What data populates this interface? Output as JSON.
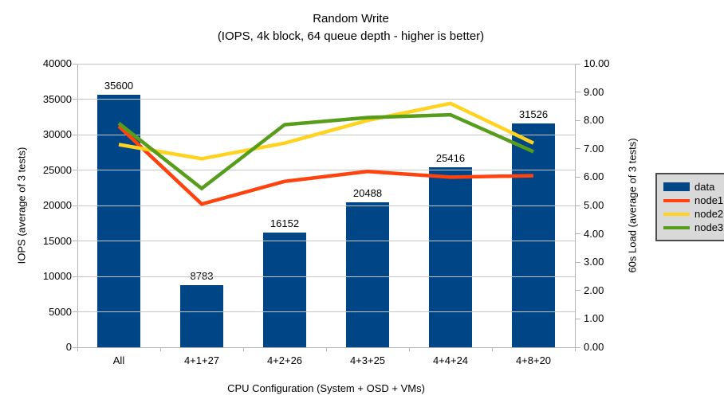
{
  "title": {
    "line1": "Random Write",
    "line2": "(IOPS, 4k block, 64 queue depth - higher is better)"
  },
  "chart_data": {
    "type": "bar+line",
    "categories": [
      "All",
      "4+1+27",
      "4+2+26",
      "4+3+25",
      "4+4+24",
      "4+8+20"
    ],
    "bar_series": {
      "name": "data",
      "axis": "left",
      "color": "#004586",
      "values": [
        35600,
        8783,
        16152,
        20488,
        25416,
        31526
      ],
      "data_labels": [
        "35600",
        "8783",
        "16152",
        "20488",
        "25416",
        "31526"
      ]
    },
    "line_series": [
      {
        "name": "node1",
        "axis": "right",
        "color": "#ff420e",
        "values": [
          7.8,
          5.05,
          5.85,
          6.2,
          6.0,
          6.05
        ]
      },
      {
        "name": "node2",
        "axis": "right",
        "color": "#ffd320",
        "values": [
          7.15,
          6.65,
          7.2,
          8.0,
          8.6,
          7.2
        ]
      },
      {
        "name": "node3",
        "axis": "right",
        "color": "#579d1c",
        "values": [
          7.9,
          5.6,
          7.85,
          8.1,
          8.2,
          6.9
        ]
      }
    ],
    "left_axis": {
      "label": "IOPS (average of 3 tests)",
      "min": 0,
      "max": 40000,
      "step": 5000,
      "decimals": 0
    },
    "right_axis": {
      "label": "60s Load (average of 3 tests)",
      "min": 0,
      "max": 10,
      "step": 1,
      "decimals": 2
    },
    "x_axis": {
      "label": "CPU Configuration (System + OSD + VMs)"
    },
    "grid": true,
    "legend_position": "right",
    "legend": [
      {
        "name": "data",
        "swatch": "bar",
        "color": "#004586"
      },
      {
        "name": "node1",
        "swatch": "line",
        "color": "#ff420e"
      },
      {
        "name": "node2",
        "swatch": "line",
        "color": "#ffd320"
      },
      {
        "name": "node3",
        "swatch": "line",
        "color": "#579d1c"
      }
    ]
  },
  "colors": {
    "background": "#ffffff",
    "grid": "#c6c6c6",
    "axis": "#b3b3b3",
    "text": "#000000",
    "legend_background": "#d9d9d9",
    "legend_border": "#4d4d4d"
  }
}
